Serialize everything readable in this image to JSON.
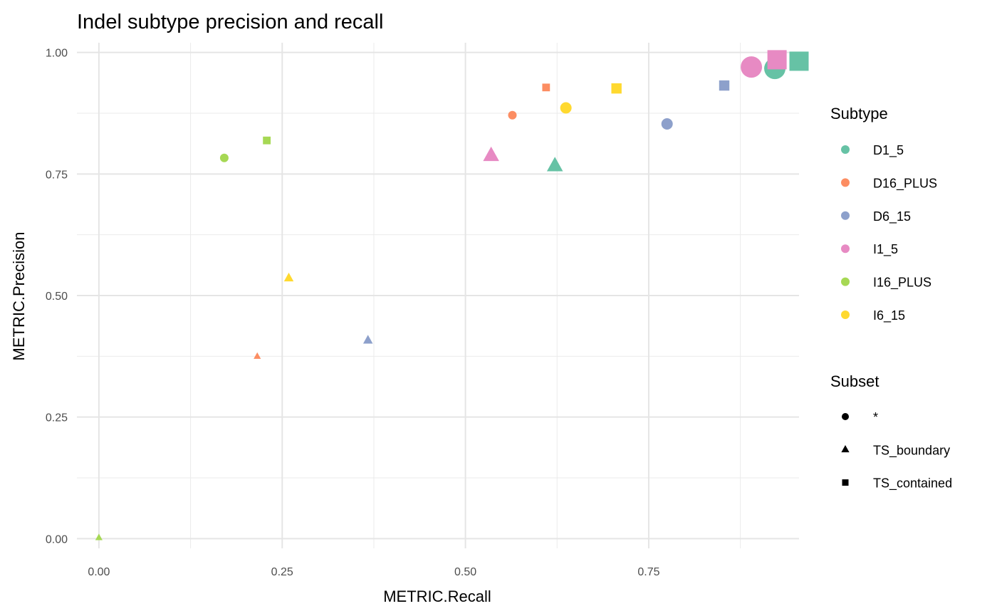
{
  "chart_data": {
    "type": "scatter",
    "title": "Indel subtype precision and recall",
    "xlabel": "METRIC.Recall",
    "ylabel": "METRIC.Precision",
    "xlim": [
      -0.03,
      0.955
    ],
    "ylim": [
      -0.02,
      1.02
    ],
    "x_ticks": [
      0.0,
      0.25,
      0.5,
      0.75
    ],
    "x_tick_labels": [
      "0.00",
      "0.25",
      "0.50",
      "0.75"
    ],
    "y_ticks": [
      0.0,
      0.25,
      0.5,
      0.75,
      1.0
    ],
    "y_tick_labels": [
      "0.00",
      "0.25",
      "0.50",
      "0.75",
      "1.00"
    ],
    "grid": true,
    "colors": {
      "D1_5": "#66c2a5",
      "D16_PLUS": "#fc8d62",
      "D6_15": "#8da0cb",
      "I1_5": "#e78ac3",
      "I16_PLUS": "#a6d854",
      "I6_15": "#ffd92f"
    },
    "legend_color": {
      "title": "Subtype",
      "entries": [
        "D1_5",
        "D16_PLUS",
        "D6_15",
        "I1_5",
        "I16_PLUS",
        "I6_15"
      ]
    },
    "legend_shape": {
      "title": "Subset",
      "entries": [
        {
          "label": "*",
          "shape": "circle"
        },
        {
          "label": "TS_boundary",
          "shape": "triangle"
        },
        {
          "label": "TS_contained",
          "shape": "square"
        }
      ]
    },
    "points": [
      {
        "subtype": "D1_5",
        "subset": "*",
        "x": 0.922,
        "y": 0.967,
        "size": 6
      },
      {
        "subtype": "D1_5",
        "subset": "TS_boundary",
        "x": 0.622,
        "y": 0.767,
        "size": 4
      },
      {
        "subtype": "D1_5",
        "subset": "TS_contained",
        "x": 0.955,
        "y": 0.982,
        "size": 6
      },
      {
        "subtype": "D16_PLUS",
        "subset": "*",
        "x": 0.564,
        "y": 0.871,
        "size": 2
      },
      {
        "subtype": "D16_PLUS",
        "subset": "TS_boundary",
        "x": 0.216,
        "y": 0.375,
        "size": 1
      },
      {
        "subtype": "D16_PLUS",
        "subset": "TS_contained",
        "x": 0.61,
        "y": 0.928,
        "size": 2
      },
      {
        "subtype": "D6_15",
        "subset": "*",
        "x": 0.775,
        "y": 0.853,
        "size": 3
      },
      {
        "subtype": "D6_15",
        "subset": "TS_boundary",
        "x": 0.367,
        "y": 0.408,
        "size": 2
      },
      {
        "subtype": "D6_15",
        "subset": "TS_contained",
        "x": 0.853,
        "y": 0.932,
        "size": 3
      },
      {
        "subtype": "I1_5",
        "subset": "*",
        "x": 0.89,
        "y": 0.97,
        "size": 6
      },
      {
        "subtype": "I1_5",
        "subset": "TS_boundary",
        "x": 0.535,
        "y": 0.788,
        "size": 4
      },
      {
        "subtype": "I1_5",
        "subset": "TS_contained",
        "x": 0.925,
        "y": 0.985,
        "size": 6
      },
      {
        "subtype": "I16_PLUS",
        "subset": "*",
        "x": 0.171,
        "y": 0.783,
        "size": 2
      },
      {
        "subtype": "I16_PLUS",
        "subset": "TS_boundary",
        "x": 0.0,
        "y": 0.002,
        "size": 1
      },
      {
        "subtype": "I16_PLUS",
        "subset": "TS_contained",
        "x": 0.229,
        "y": 0.819,
        "size": 2
      },
      {
        "subtype": "I6_15",
        "subset": "*",
        "x": 0.637,
        "y": 0.886,
        "size": 3
      },
      {
        "subtype": "I6_15",
        "subset": "TS_boundary",
        "x": 0.259,
        "y": 0.536,
        "size": 2
      },
      {
        "subtype": "I6_15",
        "subset": "TS_contained",
        "x": 0.706,
        "y": 0.926,
        "size": 3
      }
    ]
  }
}
